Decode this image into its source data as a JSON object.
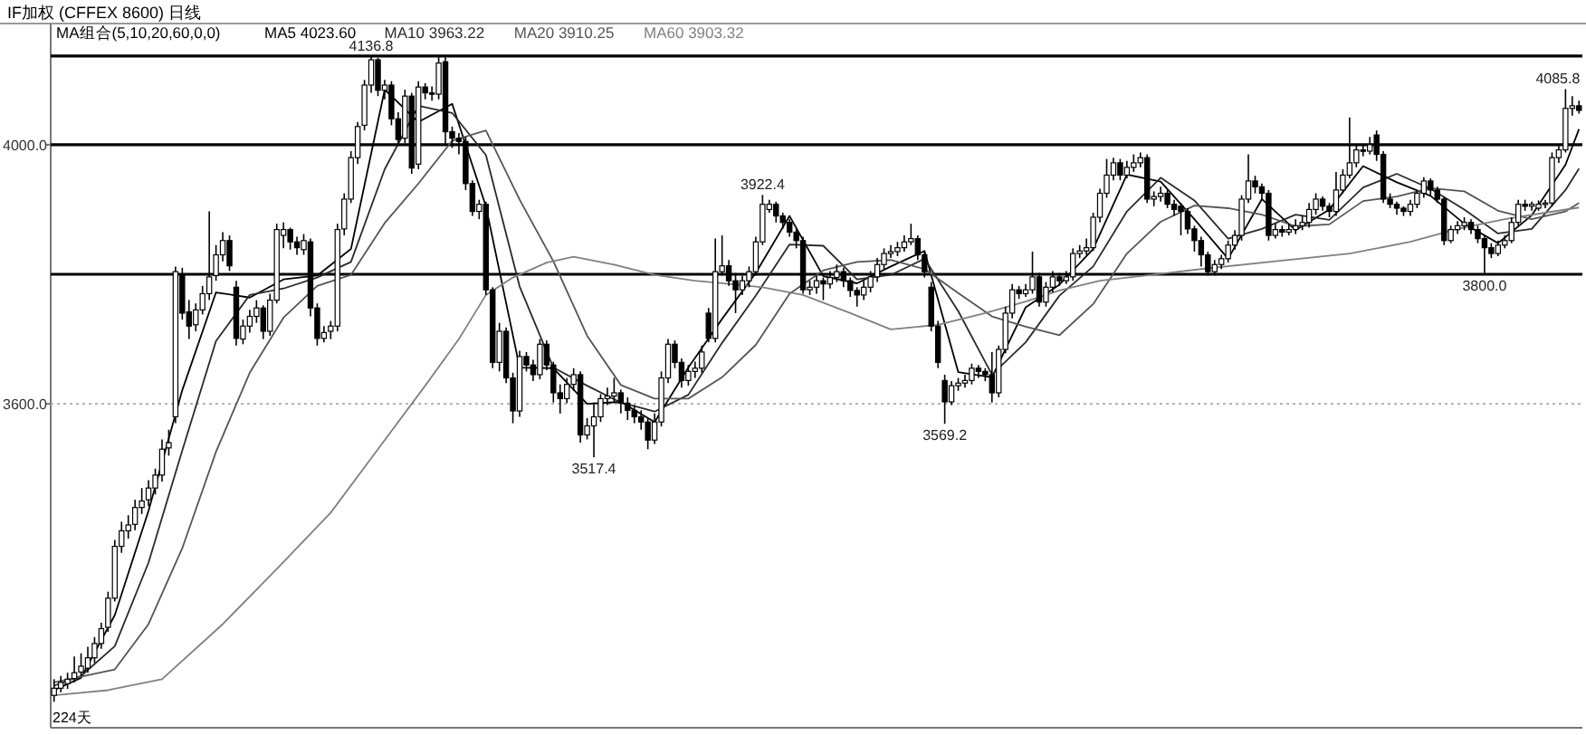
{
  "chart_data": {
    "type": "candlestick",
    "title": "IF加权 (CFFEX 8600) 日线",
    "legend_title": "MA组合(5,10,20,60,0,0)",
    "legend": "top left",
    "ylim": [
      3100,
      4187
    ],
    "yticks": [
      {
        "value": 3600,
        "label": "3600.0"
      },
      {
        "value": 4000,
        "label": "4000.0"
      }
    ],
    "ref_lines": [
      {
        "axis": "y",
        "value": 4136.8,
        "color": "#000000"
      },
      {
        "axis": "y",
        "value": 4000,
        "color": "#000000"
      },
      {
        "axis": "y",
        "value": 3800,
        "color": "#000000"
      },
      {
        "axis": "y",
        "value": 3600,
        "color": "#aaaaaa",
        "line_style": "dotted"
      }
    ],
    "annotations": [
      "224天",
      {
        "text": "4136.8",
        "y": 4136.8
      },
      {
        "text": "3517.4",
        "y": 3517.4
      },
      {
        "text": "3922.4",
        "y": 3922.4
      },
      {
        "text": "3569.2",
        "y": 3569.2
      },
      {
        "text": "3800.0",
        "y": 3800.0
      },
      {
        "text": "4085.8",
        "y": 4085.8
      }
    ],
    "categories": [
      null,
      null,
      null,
      null,
      null,
      null,
      null,
      null,
      null,
      null,
      null,
      null,
      null,
      null,
      null,
      null,
      null,
      null,
      null,
      null,
      null,
      null,
      null,
      null,
      null,
      null,
      null,
      null,
      null,
      null,
      null,
      null,
      null,
      null,
      null,
      null,
      null,
      null,
      null,
      null,
      null,
      null,
      null,
      null,
      null,
      null,
      null,
      null,
      null,
      null,
      null,
      null,
      null,
      null,
      null,
      null,
      null,
      null,
      null,
      null,
      null,
      null,
      null,
      null,
      null,
      null,
      null,
      null,
      null,
      null,
      null,
      null,
      null,
      null,
      null,
      null,
      null,
      null,
      null,
      null,
      null,
      null,
      null,
      null,
      null,
      null,
      null,
      null,
      null,
      null,
      null,
      null,
      null,
      null,
      null,
      null,
      null,
      null,
      null,
      null,
      null,
      null,
      null,
      null,
      null,
      null,
      null,
      null,
      null,
      null,
      null,
      null,
      null,
      null,
      null,
      null,
      null,
      null,
      null,
      null,
      null,
      null,
      null,
      null,
      null,
      null,
      null,
      null,
      null,
      null,
      null,
      null,
      null,
      null,
      null,
      null,
      null,
      null,
      null,
      null,
      null,
      null,
      null,
      null,
      null,
      null,
      null,
      null,
      null,
      null,
      null,
      null,
      null,
      null,
      null,
      null,
      null,
      null,
      null,
      null,
      null,
      null,
      null,
      null,
      null,
      null,
      null,
      null,
      null,
      null,
      null,
      null,
      null,
      null,
      null,
      null,
      null,
      null,
      null,
      null,
      null,
      null,
      null,
      null,
      null,
      null,
      null,
      null,
      null,
      null,
      null,
      null,
      null,
      null,
      null,
      null,
      null,
      null,
      null,
      null,
      null,
      null,
      null,
      null,
      null,
      null,
      null,
      null,
      null,
      null,
      null,
      null,
      null,
      null,
      null,
      null,
      null,
      null,
      null,
      null,
      null,
      null,
      null,
      null,
      null,
      null,
      null
    ],
    "ohlc": [
      [
        3150,
        3175,
        3140,
        3161
      ],
      [
        3161,
        3180,
        3155,
        3170
      ],
      [
        3168,
        3185,
        3160,
        3175
      ],
      [
        3176,
        3210,
        3170,
        3185
      ],
      [
        3186,
        3215,
        3180,
        3195
      ],
      [
        3192,
        3225,
        3185,
        3208
      ],
      [
        3208,
        3240,
        3200,
        3230
      ],
      [
        3230,
        3262,
        3222,
        3253
      ],
      [
        3255,
        3310,
        3248,
        3300
      ],
      [
        3300,
        3390,
        3295,
        3380
      ],
      [
        3380,
        3418,
        3370,
        3404
      ],
      [
        3404,
        3428,
        3392,
        3413
      ],
      [
        3414,
        3452,
        3405,
        3440
      ],
      [
        3440,
        3470,
        3430,
        3450
      ],
      [
        3452,
        3482,
        3442,
        3470
      ],
      [
        3470,
        3500,
        3460,
        3490
      ],
      [
        3490,
        3545,
        3480,
        3530
      ],
      [
        3532,
        3560,
        3520,
        3540
      ],
      [
        3580,
        3812,
        3570,
        3804
      ],
      [
        3800,
        3810,
        3730,
        3740
      ],
      [
        3742,
        3760,
        3700,
        3720
      ],
      [
        3722,
        3755,
        3712,
        3745
      ],
      [
        3745,
        3782,
        3738,
        3770
      ],
      [
        3770,
        3897,
        3760,
        3796
      ],
      [
        3798,
        3845,
        3790,
        3830
      ],
      [
        3830,
        3865,
        3820,
        3852
      ],
      [
        3852,
        3860,
        3805,
        3813
      ],
      [
        3780,
        3790,
        3690,
        3701
      ],
      [
        3700,
        3730,
        3692,
        3720
      ],
      [
        3720,
        3745,
        3710,
        3735
      ],
      [
        3735,
        3760,
        3725,
        3748
      ],
      [
        3748,
        3752,
        3700,
        3712
      ],
      [
        3712,
        3770,
        3705,
        3760
      ],
      [
        3760,
        3878,
        3755,
        3869
      ],
      [
        3860,
        3880,
        3840,
        3869
      ],
      [
        3869,
        3872,
        3838,
        3850
      ],
      [
        3850,
        3858,
        3830,
        3841
      ],
      [
        3838,
        3862,
        3830,
        3852
      ],
      [
        3850,
        3855,
        3735,
        3748
      ],
      [
        3748,
        3755,
        3690,
        3701
      ],
      [
        3701,
        3720,
        3695,
        3710
      ],
      [
        3712,
        3728,
        3700,
        3720
      ],
      [
        3720,
        3878,
        3712,
        3869
      ],
      [
        3870,
        3925,
        3860,
        3916
      ],
      [
        3916,
        3990,
        3910,
        3980
      ],
      [
        3980,
        4035,
        3970,
        4028
      ],
      [
        4030,
        4100,
        4022,
        4092
      ],
      [
        4092,
        4136.8,
        4080,
        4131
      ],
      [
        4131,
        4134,
        4075,
        4084
      ],
      [
        4084,
        4100,
        4070,
        4092
      ],
      [
        4092,
        4098,
        4030,
        4040
      ],
      [
        4040,
        4050,
        3998,
        4008
      ],
      [
        4010,
        4085,
        4002,
        4075
      ],
      [
        4075,
        4080,
        3955,
        3964
      ],
      [
        3970,
        4098,
        3962,
        4089
      ],
      [
        4089,
        4095,
        4070,
        4080
      ],
      [
        4080,
        4090,
        4068,
        4078
      ],
      [
        4078,
        4135,
        4070,
        4126
      ],
      [
        4128,
        4135,
        4001,
        4020
      ],
      [
        4020,
        4028,
        3995,
        4010
      ],
      [
        4010,
        4018,
        3985,
        4005
      ],
      [
        4005,
        4012,
        3930,
        3940
      ],
      [
        3940,
        3945,
        3890,
        3897
      ],
      [
        3897,
        3915,
        3885,
        3908
      ],
      [
        3908,
        3912,
        3768,
        3776
      ],
      [
        3776,
        3780,
        3655,
        3664
      ],
      [
        3664,
        3725,
        3650,
        3712
      ],
      [
        3712,
        3718,
        3632,
        3640
      ],
      [
        3640,
        3648,
        3570,
        3589
      ],
      [
        3589,
        3682,
        3580,
        3673
      ],
      [
        3673,
        3680,
        3650,
        3660
      ],
      [
        3660,
        3668,
        3635,
        3645
      ],
      [
        3645,
        3700,
        3638,
        3692
      ],
      [
        3692,
        3698,
        3652,
        3660
      ],
      [
        3660,
        3665,
        3602,
        3617
      ],
      [
        3617,
        3630,
        3585,
        3608
      ],
      [
        3608,
        3640,
        3601,
        3630
      ],
      [
        3630,
        3655,
        3620,
        3645
      ],
      [
        3645,
        3650,
        3540,
        3552
      ],
      [
        3552,
        3578,
        3545,
        3566
      ],
      [
        3566,
        3602,
        3517.4,
        3580
      ],
      [
        3580,
        3615,
        3572,
        3608
      ],
      [
        3608,
        3625,
        3598,
        3612
      ],
      [
        3612,
        3640,
        3603,
        3617
      ],
      [
        3617,
        3622,
        3585,
        3601
      ],
      [
        3601,
        3610,
        3575,
        3590
      ],
      [
        3590,
        3598,
        3570,
        3580
      ],
      [
        3580,
        3590,
        3560,
        3572
      ],
      [
        3572,
        3578,
        3530,
        3544
      ],
      [
        3544,
        3585,
        3538,
        3572
      ],
      [
        3572,
        3650,
        3565,
        3640
      ],
      [
        3640,
        3700,
        3632,
        3692
      ],
      [
        3692,
        3698,
        3655,
        3664
      ],
      [
        3664,
        3670,
        3625,
        3636
      ],
      [
        3636,
        3660,
        3628,
        3650
      ],
      [
        3650,
        3665,
        3640,
        3655
      ],
      [
        3655,
        3690,
        3648,
        3680
      ],
      [
        3740,
        3748,
        3695,
        3701
      ],
      [
        3701,
        3855,
        3695,
        3804
      ],
      [
        3804,
        3860,
        3798,
        3813
      ],
      [
        3813,
        3822,
        3782,
        3790
      ],
      [
        3790,
        3802,
        3740,
        3776
      ],
      [
        3776,
        3798,
        3768,
        3790
      ],
      [
        3790,
        3812,
        3780,
        3804
      ],
      [
        3804,
        3858,
        3798,
        3850
      ],
      [
        3850,
        3922.4,
        3845,
        3908
      ],
      [
        3900,
        3915,
        3895,
        3908
      ],
      [
        3908,
        3912,
        3880,
        3890
      ],
      [
        3890,
        3895,
        3870,
        3880
      ],
      [
        3880,
        3885,
        3858,
        3865
      ],
      [
        3865,
        3870,
        3840,
        3852
      ],
      [
        3852,
        3858,
        3770,
        3776
      ],
      [
        3776,
        3790,
        3768,
        3780
      ],
      [
        3780,
        3798,
        3770,
        3790
      ],
      [
        3790,
        3795,
        3760,
        3785
      ],
      [
        3785,
        3805,
        3778,
        3795
      ],
      [
        3795,
        3815,
        3788,
        3804
      ],
      [
        3804,
        3810,
        3780,
        3790
      ],
      [
        3790,
        3795,
        3765,
        3775
      ],
      [
        3775,
        3780,
        3750,
        3768
      ],
      [
        3768,
        3790,
        3760,
        3780
      ],
      [
        3780,
        3805,
        3772,
        3796
      ],
      [
        3796,
        3825,
        3788,
        3815
      ],
      [
        3815,
        3840,
        3808,
        3832
      ],
      [
        3832,
        3845,
        3825,
        3835
      ],
      [
        3835,
        3850,
        3828,
        3841
      ],
      [
        3841,
        3860,
        3835,
        3850
      ],
      [
        3850,
        3878,
        3845,
        3855
      ],
      [
        3855,
        3860,
        3822,
        3830
      ],
      [
        3830,
        3835,
        3795,
        3804
      ],
      [
        3780,
        3788,
        3712,
        3720
      ],
      [
        3720,
        3728,
        3655,
        3664
      ],
      [
        3636,
        3645,
        3569.2,
        3603
      ],
      [
        3603,
        3635,
        3598,
        3628
      ],
      [
        3628,
        3640,
        3620,
        3632
      ],
      [
        3632,
        3645,
        3625,
        3636
      ],
      [
        3636,
        3662,
        3630,
        3655
      ],
      [
        3655,
        3660,
        3640,
        3650
      ],
      [
        3650,
        3655,
        3635,
        3645
      ],
      [
        3645,
        3680,
        3602,
        3617
      ],
      [
        3617,
        3690,
        3610,
        3684
      ],
      [
        3684,
        3750,
        3678,
        3740
      ],
      [
        3740,
        3785,
        3732,
        3776
      ],
      [
        3776,
        3782,
        3762,
        3770
      ],
      [
        3770,
        3785,
        3765,
        3776
      ],
      [
        3776,
        3835,
        3770,
        3796
      ],
      [
        3796,
        3802,
        3750,
        3757
      ],
      [
        3757,
        3788,
        3750,
        3780
      ],
      [
        3780,
        3805,
        3772,
        3796
      ],
      [
        3796,
        3802,
        3782,
        3790
      ],
      [
        3790,
        3805,
        3785,
        3796
      ],
      [
        3796,
        3840,
        3790,
        3832
      ],
      [
        3832,
        3845,
        3825,
        3836
      ],
      [
        3836,
        3855,
        3830,
        3841
      ],
      [
        3841,
        3895,
        3836,
        3888
      ],
      [
        3888,
        3932,
        3880,
        3925
      ],
      [
        3925,
        3978,
        3918,
        3953
      ],
      [
        3953,
        3980,
        3945,
        3972
      ],
      [
        3972,
        3978,
        3945,
        3953
      ],
      [
        3953,
        3975,
        3948,
        3965
      ],
      [
        3965,
        3985,
        3958,
        3972
      ],
      [
        3972,
        3988,
        3965,
        3980
      ],
      [
        3980,
        3985,
        3910,
        3916
      ],
      [
        3916,
        3928,
        3905,
        3920
      ],
      [
        3920,
        3935,
        3912,
        3925
      ],
      [
        3925,
        3930,
        3902,
        3908
      ],
      [
        3908,
        3915,
        3890,
        3900
      ],
      [
        3905,
        3910,
        3860,
        3897
      ],
      [
        3897,
        3902,
        3862,
        3870
      ],
      [
        3870,
        3875,
        3835,
        3852
      ],
      [
        3852,
        3858,
        3812,
        3830
      ],
      [
        3830,
        3835,
        3798,
        3804
      ],
      [
        3804,
        3822,
        3798,
        3815
      ],
      [
        3815,
        3830,
        3808,
        3824
      ],
      [
        3824,
        3852,
        3818,
        3845
      ],
      [
        3845,
        3868,
        3838,
        3860
      ],
      [
        3860,
        3922,
        3852,
        3916
      ],
      [
        3916,
        3985,
        3910,
        3944
      ],
      [
        3944,
        3952,
        3925,
        3935
      ],
      [
        3935,
        3940,
        3915,
        3925
      ],
      [
        3925,
        3930,
        3852,
        3860
      ],
      [
        3860,
        3878,
        3855,
        3869
      ],
      [
        3869,
        3875,
        3858,
        3865
      ],
      [
        3865,
        3878,
        3860,
        3869
      ],
      [
        3869,
        3885,
        3862,
        3875
      ],
      [
        3875,
        3890,
        3868,
        3880
      ],
      [
        3880,
        3910,
        3872,
        3900
      ],
      [
        3900,
        3925,
        3892,
        3916
      ],
      [
        3916,
        3920,
        3898,
        3905
      ],
      [
        3905,
        3910,
        3888,
        3897
      ],
      [
        3897,
        3958,
        3890,
        3930
      ],
      [
        3930,
        3962,
        3925,
        3953
      ],
      [
        3953,
        4042,
        3948,
        3972
      ],
      [
        3972,
        3999,
        3965,
        3992
      ],
      [
        3992,
        3999,
        3982,
        3990
      ],
      [
        3990,
        4012,
        3985,
        4000
      ],
      [
        4015,
        4022,
        3975,
        3985
      ],
      [
        3985,
        3990,
        3910,
        3916
      ],
      [
        3916,
        3925,
        3902,
        3908
      ],
      [
        3908,
        3912,
        3892,
        3902
      ],
      [
        3902,
        3905,
        3890,
        3897
      ],
      [
        3897,
        3915,
        3890,
        3908
      ],
      [
        3908,
        3930,
        3902,
        3925
      ],
      [
        3925,
        3950,
        3918,
        3944
      ],
      [
        3944,
        3948,
        3922,
        3930
      ],
      [
        3930,
        3935,
        3910,
        3916
      ],
      [
        3916,
        3920,
        3845,
        3852
      ],
      [
        3852,
        3875,
        3848,
        3869
      ],
      [
        3869,
        3882,
        3862,
        3875
      ],
      [
        3875,
        3888,
        3868,
        3880
      ],
      [
        3880,
        3885,
        3862,
        3869
      ],
      [
        3869,
        3875,
        3848,
        3855
      ],
      [
        3855,
        3860,
        3800.0,
        3841
      ],
      [
        3841,
        3848,
        3825,
        3832
      ],
      [
        3832,
        3852,
        3828,
        3845
      ],
      [
        3845,
        3860,
        3840,
        3852
      ],
      [
        3852,
        3888,
        3848,
        3880
      ],
      [
        3880,
        3915,
        3875,
        3908
      ],
      [
        3908,
        3915,
        3898,
        3905
      ],
      [
        3905,
        3912,
        3898,
        3908
      ],
      [
        3902,
        3914,
        3898,
        3908
      ],
      [
        3908,
        3915,
        3902,
        3910
      ],
      [
        3910,
        3988,
        3905,
        3980
      ],
      [
        3980,
        3998,
        3972,
        3992
      ],
      [
        3992,
        4085.8,
        3988,
        4056
      ],
      [
        4056,
        4075,
        4045,
        4060
      ],
      [
        4060,
        4068,
        4048,
        4053
      ]
    ],
    "series": [
      {
        "name": "MA5 4023.60",
        "type": "line",
        "color": "#000000",
        "values": [
          3158,
          null,
          null,
          null,
          3177,
          null,
          null,
          null,
          null,
          3274,
          null,
          null,
          null,
          null,
          3435,
          null,
          null,
          null,
          null,
          3621,
          null,
          null,
          null,
          null,
          3772,
          null,
          null,
          null,
          null,
          3764,
          null,
          null,
          null,
          null,
          3792,
          null,
          null,
          null,
          null,
          3798,
          null,
          null,
          null,
          null,
          3839,
          null,
          null,
          null,
          null,
          4085,
          null,
          null,
          null,
          null,
          4035,
          null,
          null,
          null,
          null,
          4063,
          null,
          null,
          null,
          null,
          3905,
          null,
          null,
          null,
          null,
          3656,
          null,
          null,
          null,
          null,
          3655,
          null,
          null,
          null,
          null,
          3600,
          null,
          null,
          null,
          null,
          3603,
          null,
          null,
          null,
          null,
          3572,
          null,
          null,
          null,
          null,
          3656,
          null,
          null,
          null,
          null,
          3731,
          null,
          null,
          null,
          null,
          3802,
          null,
          null,
          null,
          null,
          3890,
          null,
          null,
          null,
          null,
          3797,
          null,
          null,
          null,
          null,
          3786,
          null,
          null,
          null,
          null,
          3812,
          null,
          null,
          null,
          null,
          3836,
          null,
          null,
          null,
          null,
          3649,
          null,
          null,
          null,
          null,
          3641,
          null,
          null,
          null,
          null,
          3749,
          null,
          null,
          null,
          null,
          3784,
          null,
          null,
          null,
          null,
          3839,
          null,
          null,
          null,
          null,
          3954,
          null,
          null,
          null,
          null,
          3943,
          null,
          null,
          null,
          null,
          3885,
          null,
          null,
          null,
          null,
          3824,
          null,
          null,
          null,
          null,
          3916,
          null,
          null,
          null,
          null,
          3868,
          null,
          null,
          null,
          null,
          3900,
          null,
          null,
          null,
          null,
          3967,
          null,
          null,
          null,
          null,
          3942,
          null,
          null,
          null,
          null,
          3921,
          null,
          null,
          null,
          null,
          3878,
          null,
          null,
          null,
          null,
          3848,
          null,
          null,
          null,
          null,
          3891,
          null,
          null,
          null,
          null,
          3969,
          null,
          4024
        ]
      },
      {
        "name": "MA10 3963.22",
        "type": "line",
        "color": "#2a2a2a",
        "values": [
          3165,
          null,
          null,
          null,
          3180,
          null,
          null,
          null,
          null,
          3226,
          null,
          null,
          null,
          null,
          3355,
          null,
          null,
          null,
          null,
          3528,
          null,
          null,
          null,
          null,
          3697,
          null,
          null,
          null,
          null,
          3768,
          null,
          null,
          null,
          null,
          3778,
          null,
          null,
          null,
          null,
          3795,
          null,
          null,
          null,
          null,
          3819,
          null,
          null,
          null,
          null,
          3962,
          null,
          null,
          null,
          null,
          4060,
          null,
          null,
          null,
          null,
          4049,
          null,
          null,
          null,
          null,
          3984,
          null,
          null,
          null,
          null,
          3781,
          null,
          null,
          null,
          null,
          3656,
          null,
          null,
          null,
          null,
          3628,
          null,
          null,
          null,
          null,
          3602,
          null,
          null,
          null,
          null,
          3588,
          null,
          null,
          null,
          null,
          3614,
          null,
          null,
          null,
          null,
          3694,
          null,
          null,
          null,
          null,
          3767,
          null,
          null,
          null,
          null,
          3846,
          null,
          null,
          null,
          null,
          3844,
          null,
          null,
          null,
          null,
          3792,
          null,
          null,
          null,
          null,
          3799,
          null,
          null,
          null,
          null,
          3824,
          null,
          null,
          null,
          null,
          3743,
          null,
          null,
          null,
          null,
          3645,
          null,
          null,
          null,
          null,
          3695,
          null,
          null,
          null,
          null,
          3767,
          null,
          null,
          null,
          null,
          3812,
          null,
          null,
          null,
          null,
          3897,
          null,
          null,
          null,
          null,
          3949,
          null,
          null,
          null,
          null,
          3914,
          null,
          null,
          null,
          null,
          3855,
          null,
          null,
          null,
          null,
          3870,
          null,
          null,
          null,
          null,
          3892,
          null,
          null,
          null,
          null,
          3884,
          null,
          null,
          null,
          null,
          3934,
          null,
          null,
          null,
          null,
          3955,
          null,
          null,
          null,
          null,
          3932,
          null,
          null,
          null,
          null,
          3900,
          null,
          null,
          null,
          null,
          3863,
          null,
          null,
          null,
          null,
          3870,
          null,
          null,
          null,
          null,
          3930,
          null,
          3963
        ]
      },
      {
        "name": "MA20 3910.25",
        "type": "line",
        "color": "#555555",
        "values": [
          3170,
          null,
          null,
          null,
          null,
          null,
          null,
          null,
          null,
          3190,
          null,
          null,
          null,
          null,
          3260,
          null,
          null,
          null,
          null,
          3377,
          null,
          null,
          null,
          null,
          3526,
          null,
          null,
          null,
          null,
          3648,
          null,
          null,
          null,
          null,
          3733,
          null,
          null,
          null,
          null,
          3782,
          null,
          null,
          null,
          null,
          3799,
          null,
          null,
          null,
          null,
          3879,
          null,
          null,
          null,
          null,
          3940,
          null,
          null,
          null,
          null,
          4006,
          null,
          null,
          null,
          null,
          4022,
          null,
          null,
          null,
          null,
          3915,
          null,
          null,
          null,
          null,
          3820,
          null,
          null,
          null,
          null,
          3705,
          null,
          null,
          null,
          null,
          3629,
          null,
          null,
          null,
          null,
          3608,
          null,
          null,
          null,
          null,
          3608,
          null,
          null,
          null,
          null,
          3641,
          null,
          null,
          null,
          null,
          3691,
          null,
          null,
          null,
          null,
          3770,
          null,
          null,
          null,
          null,
          3806,
          null,
          null,
          null,
          null,
          3819,
          null,
          null,
          null,
          null,
          3822,
          null,
          null,
          null,
          null,
          3808,
          null,
          null,
          null,
          null,
          3771,
          null,
          null,
          null,
          null,
          3735,
          null,
          null,
          null,
          null,
          3719,
          null,
          null,
          null,
          null,
          3706,
          null,
          null,
          null,
          null,
          3754,
          null,
          null,
          null,
          null,
          3832,
          null,
          null,
          null,
          null,
          3881,
          null,
          null,
          null,
          null,
          3906,
          null,
          null,
          null,
          null,
          3902,
          null,
          null,
          null,
          null,
          3892,
          null,
          null,
          null,
          null,
          3874,
          null,
          null,
          null,
          null,
          3877,
          null,
          null,
          null,
          null,
          3913,
          null,
          null,
          null,
          null,
          3920,
          null,
          null,
          null,
          null,
          3933,
          null,
          null,
          null,
          null,
          3928,
          null,
          null,
          null,
          null,
          3898,
          null,
          null,
          null,
          null,
          3885,
          null,
          null,
          null,
          null,
          3897,
          null,
          3910
        ]
      },
      {
        "name": "MA60 3903.32",
        "type": "line",
        "color": "#808080",
        "values": [
          3150,
          null,
          null,
          null,
          null,
          null,
          null,
          null,
          3158,
          null,
          null,
          null,
          null,
          null,
          null,
          null,
          3175,
          null,
          null,
          null,
          null,
          null,
          null,
          null,
          null,
          3260,
          null,
          null,
          null,
          null,
          null,
          null,
          null,
          3345,
          null,
          null,
          null,
          null,
          null,
          null,
          null,
          3432,
          null,
          null,
          null,
          null,
          null,
          null,
          3530,
          null,
          null,
          null,
          null,
          null,
          null,
          3628,
          null,
          null,
          null,
          null,
          3700,
          null,
          null,
          null,
          3768,
          null,
          null,
          null,
          3795,
          null,
          null,
          null,
          null,
          3818,
          null,
          null,
          null,
          3827,
          null,
          null,
          null,
          null,
          null,
          3815,
          null,
          null,
          null,
          null,
          null,
          3799,
          null,
          null,
          null,
          null,
          null,
          3790,
          null,
          null,
          null,
          null,
          3785,
          null,
          null,
          null,
          null,
          3780,
          null,
          null,
          null,
          null,
          null,
          3768,
          null,
          null,
          null,
          null,
          null,
          null,
          3740,
          null,
          null,
          null,
          null,
          null,
          3715,
          null,
          null,
          null,
          null,
          null,
          null,
          3722,
          null,
          null,
          null,
          null,
          null,
          null,
          3740,
          null,
          null,
          null,
          null,
          null,
          3758,
          null,
          null,
          null,
          null,
          3775,
          null,
          null,
          null,
          null,
          null,
          3790,
          null,
          null,
          null,
          null,
          3796,
          null,
          null,
          null,
          null,
          null,
          null,
          null,
          null,
          null,
          3808,
          null,
          null,
          null,
          null,
          null,
          null,
          null,
          null,
          null,
          null,
          3820,
          null,
          null,
          null,
          null,
          null,
          null,
          null,
          null,
          null,
          null,
          3832,
          null,
          null,
          null,
          null,
          null,
          null,
          null,
          null,
          3850,
          null,
          null,
          null,
          null,
          null,
          null,
          3870,
          null,
          null,
          null,
          null,
          null,
          null,
          3885,
          null,
          null,
          null,
          null,
          null,
          3895,
          null,
          null,
          null,
          null,
          3903
        ]
      }
    ]
  }
}
